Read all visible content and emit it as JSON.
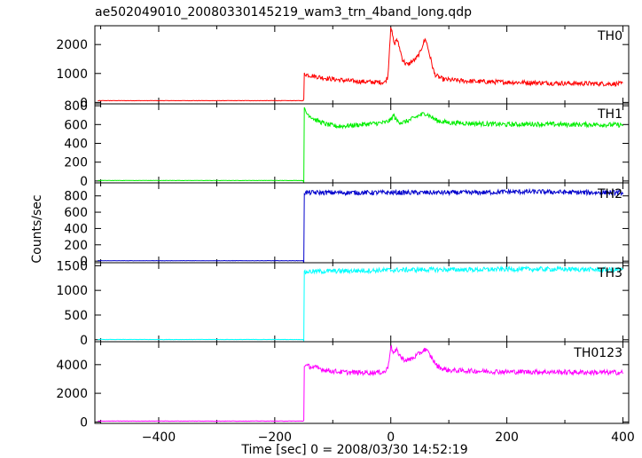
{
  "chart_data": {
    "type": "line",
    "title": "ae502049010_20080330145219_wam3_trn_4band_long.qdp",
    "xlabel": "Time [sec] 0 = 2008/03/30 14:52:19",
    "ylabel": "Counts/sec",
    "xlim": [
      -510,
      410
    ],
    "x_ticks": [
      -400,
      -200,
      0,
      200,
      400
    ],
    "x_tick_labels": [
      "−400",
      "−200",
      "0",
      "200",
      "400"
    ],
    "grid": false,
    "shared_x": true,
    "event_start": -150,
    "series": [
      {
        "name": "TH0",
        "color": "#ff0000",
        "ylim": [
          -50,
          2650
        ],
        "y_ticks": [
          0,
          1000,
          2000
        ],
        "x": [
          -505,
          -150,
          -149,
          -145,
          -130,
          -110,
          -90,
          -70,
          -50,
          -30,
          -10,
          -5,
          0,
          3,
          6,
          10,
          15,
          20,
          25,
          30,
          35,
          40,
          45,
          50,
          55,
          60,
          65,
          70,
          75,
          80,
          90,
          100,
          120,
          150,
          200,
          250,
          300,
          350,
          400
        ],
        "y": [
          60,
          60,
          1000,
          960,
          900,
          830,
          780,
          740,
          720,
          700,
          700,
          900,
          2650,
          2300,
          2000,
          2200,
          1900,
          1500,
          1350,
          1300,
          1400,
          1450,
          1550,
          1700,
          2000,
          2200,
          1800,
          1400,
          1000,
          900,
          800,
          780,
          750,
          720,
          700,
          680,
          660,
          650,
          640
        ]
      },
      {
        "name": "TH1",
        "color": "#00ee00",
        "ylim": [
          -20,
          820
        ],
        "y_ticks": [
          0,
          200,
          400,
          600,
          800
        ],
        "x": [
          -505,
          -150,
          -149,
          -145,
          -130,
          -110,
          -90,
          -70,
          -50,
          -30,
          -10,
          0,
          5,
          10,
          20,
          30,
          40,
          50,
          60,
          70,
          80,
          90,
          100,
          150,
          200,
          250,
          300,
          350,
          400
        ],
        "y": [
          5,
          5,
          760,
          720,
          650,
          600,
          580,
          590,
          600,
          610,
          620,
          650,
          700,
          640,
          620,
          640,
          670,
          700,
          720,
          680,
          640,
          630,
          620,
          610,
          600,
          605,
          600,
          600,
          595
        ]
      },
      {
        "name": "TH2",
        "color": "#0000cc",
        "ylim": [
          -20,
          960
        ],
        "y_ticks": [
          0,
          200,
          400,
          600,
          800
        ],
        "x": [
          -505,
          -150,
          -149,
          -145,
          -100,
          -50,
          0,
          50,
          100,
          150,
          200,
          250,
          300,
          350,
          400
        ],
        "y": [
          5,
          5,
          840,
          840,
          840,
          840,
          840,
          840,
          840,
          840,
          850,
          850,
          845,
          840,
          840
        ]
      },
      {
        "name": "TH3",
        "color": "#00ffff",
        "ylim": [
          -40,
          1560
        ],
        "y_ticks": [
          0,
          500,
          1000,
          1500
        ],
        "x": [
          -505,
          -150,
          -149,
          -145,
          -100,
          -50,
          0,
          50,
          100,
          150,
          200,
          250,
          300,
          350,
          400
        ],
        "y": [
          5,
          5,
          1350,
          1380,
          1390,
          1400,
          1410,
          1420,
          1420,
          1420,
          1430,
          1430,
          1430,
          1420,
          1420
        ]
      },
      {
        "name": "TH0123",
        "color": "#ff00ff",
        "ylim": [
          -100,
          5600
        ],
        "y_ticks": [
          0,
          2000,
          4000
        ],
        "x": [
          -505,
          -150,
          -149,
          -145,
          -130,
          -110,
          -90,
          -70,
          -50,
          -30,
          -10,
          -5,
          0,
          5,
          10,
          20,
          30,
          40,
          50,
          60,
          70,
          80,
          90,
          100,
          150,
          200,
          250,
          300,
          350,
          400
        ],
        "y": [
          60,
          60,
          4000,
          3900,
          3800,
          3600,
          3500,
          3450,
          3450,
          3450,
          3500,
          3800,
          5300,
          4800,
          5000,
          4400,
          4300,
          4500,
          4800,
          5100,
          4500,
          3900,
          3700,
          3600,
          3550,
          3500,
          3500,
          3480,
          3460,
          3450
        ]
      }
    ]
  }
}
